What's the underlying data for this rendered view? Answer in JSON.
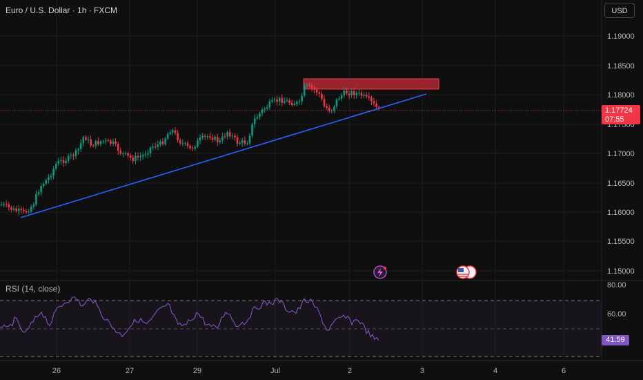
{
  "header": {
    "symbol_title": "Euro / U.S. Dollar · 1h · FXCM",
    "currency_button": "USD"
  },
  "price_axis": {
    "ticks": [
      "1.19000",
      "1.18500",
      "1.18000",
      "1.17500",
      "1.17000",
      "1.16500",
      "1.16000",
      "1.15500",
      "1.15000"
    ],
    "current_price": "1.17724",
    "countdown": "07:55"
  },
  "rsi_panel": {
    "label": "RSI (14, close)",
    "ticks": [
      "80.00",
      "60.00"
    ],
    "current_value": "41.59"
  },
  "time_axis": {
    "labels": [
      "26",
      "27",
      "29",
      "Jul",
      "2",
      "3",
      "4",
      "6"
    ]
  },
  "colors": {
    "background": "#0f0f0f",
    "up_candle": "#089981",
    "down_candle": "#f23645",
    "trendline": "#2962ff",
    "resistance_zone": "#b22833",
    "rsi_line": "#7e57c2",
    "current_price": "#f23645"
  },
  "icons": {
    "lightning_event": "lightning-icon",
    "us_flag_event": "us-flag-icon"
  }
}
